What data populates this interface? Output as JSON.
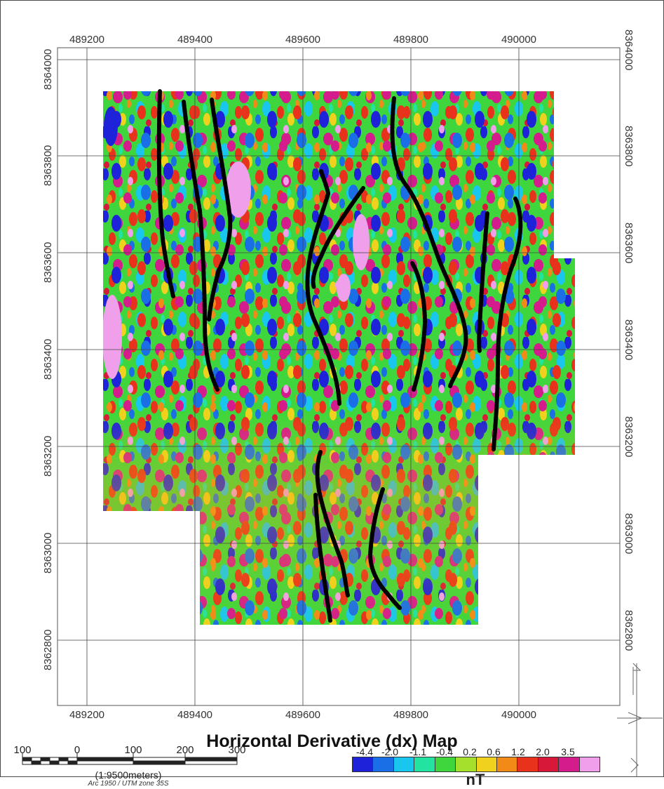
{
  "title": "Horizontal Derivative (dx) Map",
  "axes": {
    "easting_ticks": [
      "489200",
      "489400",
      "489600",
      "489800",
      "490000"
    ],
    "northing_ticks": [
      "8364000",
      "8363800",
      "8363600",
      "8363400",
      "8363200",
      "8363000",
      "8362800"
    ]
  },
  "scale_bar": {
    "labels": [
      "100",
      "0",
      "100",
      "200",
      "300"
    ],
    "ratio": "(1:9500meters)",
    "projection": "Arc 1950 / UTM zone 35S"
  },
  "legend": {
    "labels": [
      "-4.4",
      "-2.0",
      "-1.1",
      "-0.4",
      "0.2",
      "0.6",
      "1.2",
      "2.0",
      "3.5"
    ],
    "colors": [
      "#1e22d8",
      "#1a6fe6",
      "#18c6ee",
      "#22e3a0",
      "#3fd53c",
      "#a5e02c",
      "#f0d21e",
      "#f28a18",
      "#e8321c",
      "#d81838",
      "#d41c8c",
      "#f0a0ea"
    ],
    "units": "nT"
  },
  "lineaments_style": "black dashed lines",
  "colors": {
    "low": "#1e22d8",
    "high": "#f0a0ea",
    "lineament": "#000000"
  }
}
